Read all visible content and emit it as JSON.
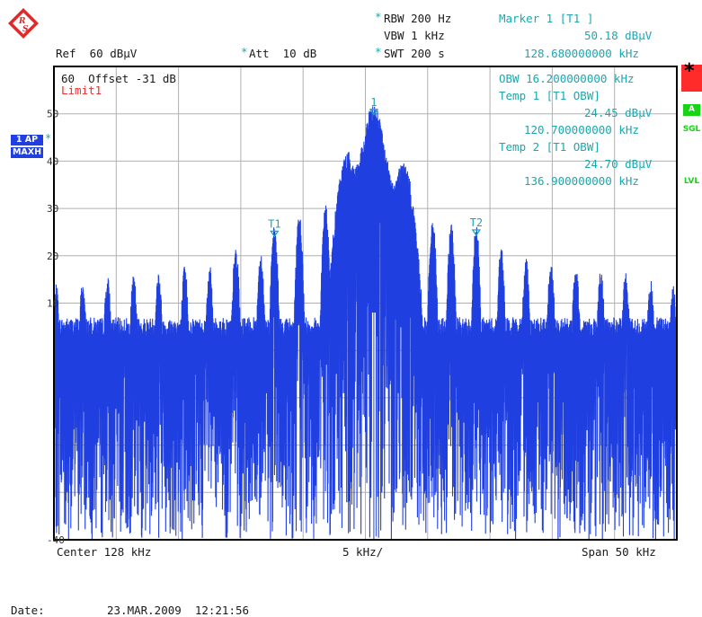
{
  "header": {
    "rbw_star": "*",
    "rbw": "RBW 200 Hz",
    "vbw": "VBW 1 kHz",
    "swt_star": "*",
    "swt": "SWT 200 s",
    "ref": "Ref  60 dBµV",
    "att_star": "*",
    "att": "Att  10 dB",
    "marker_title": "Marker 1 [T1 ]",
    "marker_level": "50.18 dBµV",
    "marker_freq": "128.680000000 kHz"
  },
  "overlay": {
    "offset_line": "60  Offset -31 dB",
    "limit": "Limit1",
    "obw": "OBW 16.200000000 kHz",
    "temp1_title": "Temp 1 [T1 OBW]",
    "temp1_level": "24.45 dBµV",
    "temp1_freq": "120.700000000 kHz",
    "temp2_title": "Temp 2 [T1 OBW]",
    "temp2_level": "24.70 dBµV",
    "temp2_freq": "136.900000000 kHz"
  },
  "side": {
    "ap": "1 AP",
    "ap_star": "*",
    "maxh": "MAXH",
    "red_star": "*",
    "a": "A",
    "sgl": "SGL",
    "lvl": "LVL"
  },
  "footer": {
    "center": "Center 128 kHz",
    "div": "5 kHz/",
    "span": "Span 50 kHz",
    "date_label": "Date:",
    "date_value": "23.MAR.2009  12:21:56"
  },
  "colors": {
    "trace": "#1f3fe0",
    "annotation": "#1aa8b0",
    "limit": "#e83030",
    "grid": "#b0b0b0"
  },
  "icons": {
    "logo": "rohde-schwarz-logo-icon"
  },
  "chart_data": {
    "type": "line",
    "x_unit": "kHz",
    "y_unit": "dBµV",
    "xlim": [
      103,
      153
    ],
    "ylim": [
      -40,
      60
    ],
    "y_ticks": [
      50,
      40,
      30,
      20,
      10,
      -40
    ],
    "y_tick_labels": [
      "50",
      "40",
      "30",
      "20",
      "10",
      "-40"
    ],
    "grid": true,
    "noise_floor_dbuv": 5,
    "peaks": [
      {
        "x": 103.2,
        "y": 12
      },
      {
        "x": 105.3,
        "y": 13
      },
      {
        "x": 107.3,
        "y": 14
      },
      {
        "x": 109.4,
        "y": 14
      },
      {
        "x": 111.4,
        "y": 15
      },
      {
        "x": 113.5,
        "y": 16
      },
      {
        "x": 115.5,
        "y": 16
      },
      {
        "x": 117.6,
        "y": 20
      },
      {
        "x": 119.6,
        "y": 19
      },
      {
        "x": 120.7,
        "y": 24.45
      },
      {
        "x": 122.7,
        "y": 27
      },
      {
        "x": 124.8,
        "y": 29
      },
      {
        "x": 125.9,
        "y": 28
      },
      {
        "x": 126.6,
        "y": 40
      },
      {
        "x": 127.4,
        "y": 38
      },
      {
        "x": 128.0,
        "y": 42
      },
      {
        "x": 128.68,
        "y": 50.18
      },
      {
        "x": 129.4,
        "y": 40
      },
      {
        "x": 130.2,
        "y": 34
      },
      {
        "x": 131.0,
        "y": 38
      },
      {
        "x": 131.8,
        "y": 29
      },
      {
        "x": 133.4,
        "y": 26
      },
      {
        "x": 134.9,
        "y": 25
      },
      {
        "x": 136.9,
        "y": 24.7
      },
      {
        "x": 138.9,
        "y": 20
      },
      {
        "x": 140.9,
        "y": 18
      },
      {
        "x": 142.9,
        "y": 17
      },
      {
        "x": 144.9,
        "y": 16
      },
      {
        "x": 146.9,
        "y": 15
      },
      {
        "x": 148.9,
        "y": 15
      },
      {
        "x": 150.9,
        "y": 13
      },
      {
        "x": 152.7,
        "y": 12
      }
    ],
    "markers": [
      {
        "label": "1",
        "x": 128.68,
        "y": 50.18
      },
      {
        "label": "T1",
        "x": 120.7,
        "y": 24.45
      },
      {
        "label": "T2",
        "x": 136.9,
        "y": 24.7
      }
    ]
  }
}
